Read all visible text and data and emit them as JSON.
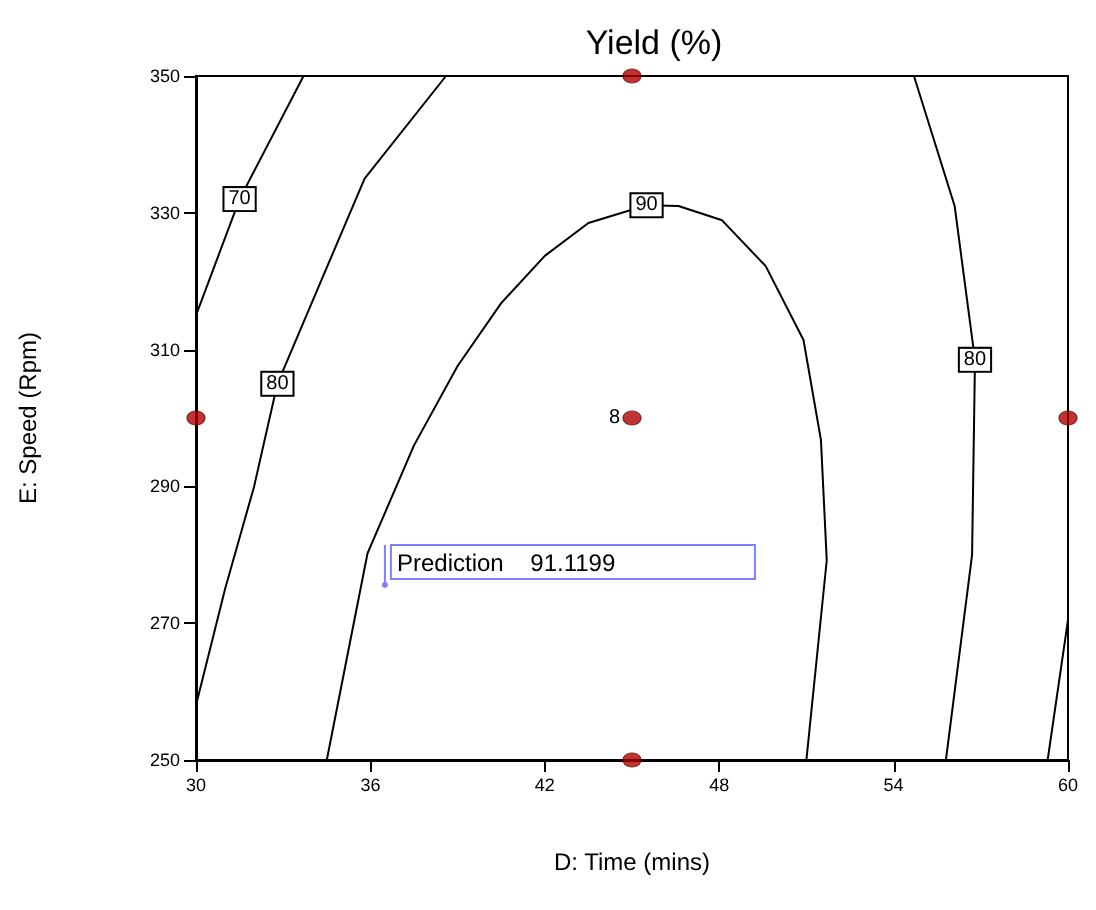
{
  "chart_data": {
    "type": "line",
    "title": "Yield (%)",
    "xlabel": "D: Time (mins)",
    "ylabel": "E: Speed (Rpm)",
    "xlim": [
      30,
      60
    ],
    "xticks": [
      30,
      36,
      42,
      48,
      54,
      60
    ],
    "ylim": [
      250,
      350
    ],
    "yticks": [
      250,
      270,
      290,
      310,
      330,
      350
    ],
    "grid": false,
    "legend": false,
    "marker": "none",
    "line_style": "solid",
    "series": [
      {
        "name": "70",
        "color": "#000000",
        "x": [
          30,
          31.5,
          33.7
        ],
        "values": [
          315,
          332,
          350
        ]
      },
      {
        "name": "80",
        "color": "#000000",
        "x": [
          30,
          31,
          32,
          32.8,
          34.3,
          35.8,
          38.6
        ],
        "values": [
          258,
          275,
          290,
          305,
          320,
          335,
          350
        ]
      },
      {
        "name": "90",
        "color": "#000000",
        "x": [
          34.5,
          35.9,
          37.5,
          39,
          40.5,
          42,
          43.5,
          45.5,
          46.6,
          48.1,
          49.6,
          50.9,
          51.5,
          51.7,
          51
        ],
        "values": [
          250,
          280.2,
          296,
          307.6,
          316.8,
          323.7,
          328.5,
          331.1,
          331,
          328.9,
          322.2,
          311.4,
          296.8,
          279.2,
          250
        ]
      },
      {
        "name": "80",
        "color": "#000000",
        "x": [
          54.7,
          56.1,
          56.8,
          56.7,
          55.8
        ],
        "values": [
          350,
          331,
          308.5,
          280,
          250
        ]
      },
      {
        "color": "#000000",
        "x": [
          60,
          59.3
        ],
        "values": [
          270.5,
          250
        ]
      },
      {
        "type": "scatter",
        "marker": "circle",
        "color": "#b00000",
        "x": [
          30,
          45,
          45,
          45,
          60
        ],
        "values": [
          300,
          350,
          300,
          250,
          300
        ]
      }
    ],
    "annotations": [
      {
        "text": "8",
        "x": 45,
        "y": 300
      },
      {
        "text": "Prediction    91.1199",
        "x": 36.5,
        "y": 275.6
      }
    ]
  }
}
